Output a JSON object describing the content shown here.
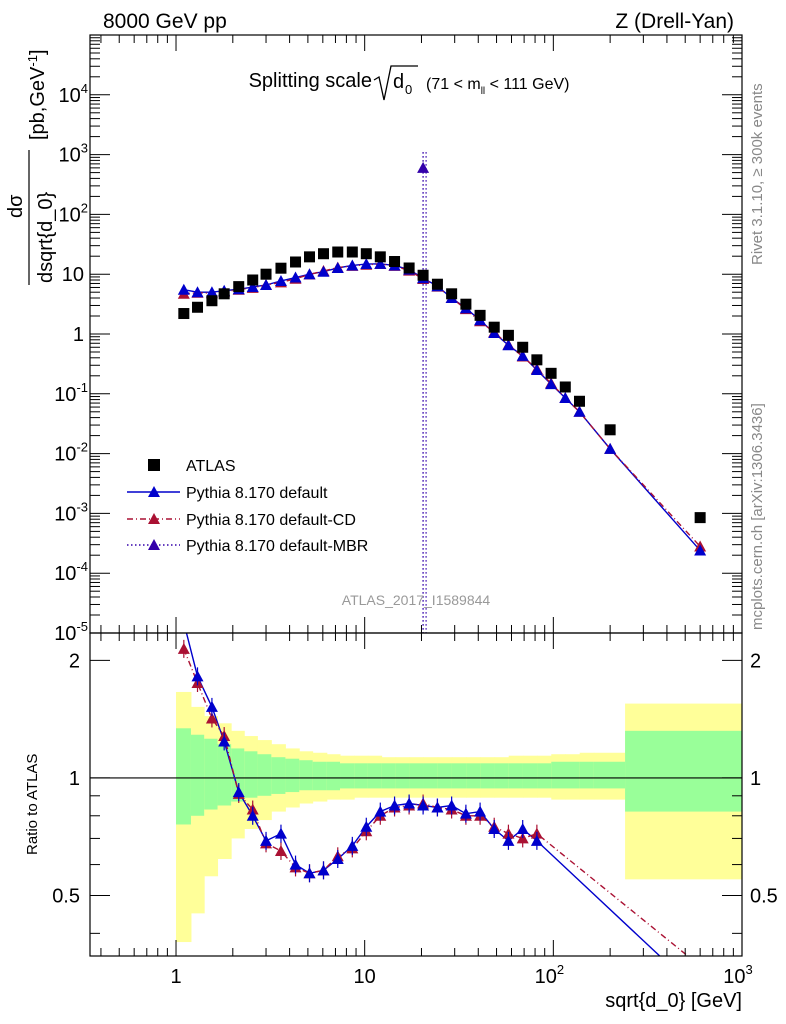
{
  "header": {
    "left": "8000 GeV pp",
    "right": "Z (Drell-Yan)",
    "side_rivet": "Rivet 3.1.10, ≥ 300k events",
    "side_mcplots": "mcplots.cern.ch [arXiv:1306.3436]"
  },
  "chart_data": [
    {
      "type": "scatter",
      "title": "Splitting scale",
      "title_sqrt": "d",
      "title_sub": "0",
      "title_range_pre": "(71 < m",
      "title_range_sub": "ll",
      "title_range_post": " < 111 GeV)",
      "ylabel_num": "dσ",
      "ylabel_den": "dsqrt{d_0}",
      "ylabel_unit": "[pb,GeV",
      "ylabel_unit_sup": "-1",
      "ylabel_unit_close": "]",
      "watermark": "ATLAS_2017_I1589844",
      "xscale": "log",
      "yscale": "log",
      "xlim": [
        0.35,
        1000
      ],
      "ylim": [
        1e-05,
        100000.0
      ],
      "y_tick_labels": [
        "10^-5",
        "10^-4",
        "10^-3",
        "10^-2",
        "10^-1",
        "1",
        "10",
        "10^2",
        "10^3",
        "10^4"
      ],
      "x": [
        1.1,
        1.3,
        1.55,
        1.8,
        2.15,
        2.55,
        3.0,
        3.6,
        4.3,
        5.1,
        6.05,
        7.2,
        8.6,
        10.2,
        12.1,
        14.4,
        17.2,
        20.4,
        24.3,
        28.9,
        34.4,
        40.9,
        48.6,
        57.8,
        68.8,
        81.8,
        97.3,
        115.7,
        137.6,
        200,
        600
      ],
      "series": [
        {
          "name": "ATLAS",
          "marker": "square",
          "color": "#000000",
          "values": [
            2.2,
            2.8,
            3.6,
            4.7,
            6.2,
            8.0,
            10.0,
            12.6,
            16.0,
            19.5,
            22.0,
            23.5,
            23.5,
            22.0,
            19.5,
            16.3,
            12.7,
            9.6,
            6.8,
            4.7,
            3.15,
            2.05,
            1.3,
            0.95,
            0.6,
            0.37,
            0.22,
            0.13,
            0.075,
            0.025,
            0.00085
          ]
        },
        {
          "name": "Pythia 8.170 default",
          "marker": "triangle",
          "line": "solid",
          "color": "#0000cc",
          "values": [
            5.5,
            5.0,
            5.0,
            5.3,
            5.6,
            6.1,
            6.6,
            7.7,
            8.8,
            10.0,
            11.0,
            12.7,
            14.0,
            14.8,
            14.9,
            14.0,
            11.9,
            8.6,
            6.3,
            4.0,
            2.7,
            1.7,
            1.04,
            0.65,
            0.43,
            0.25,
            0.145,
            0.085,
            0.05,
            0.012,
            0.00024
          ]
        },
        {
          "name": "Pythia 8.170 default-CD",
          "marker": "triangle",
          "line": "dashdot",
          "color": "#aa1133",
          "values": [
            4.7,
            4.9,
            4.8,
            5.1,
            5.5,
            5.9,
            6.6,
            7.3,
            8.4,
            9.9,
            11.3,
            12.9,
            13.8,
            14.4,
            14.8,
            13.8,
            11.5,
            8.3,
            6.2,
            4.0,
            2.6,
            1.63,
            1.07,
            0.66,
            0.42,
            0.26,
            0.15,
            0.085,
            0.05,
            0.012,
            0.00028
          ]
        },
        {
          "name": "Pythia 8.170 default-MBR",
          "marker": "triangle",
          "line": "dotted",
          "color": "#3300aa",
          "point_x": 20.4,
          "point_y": 600,
          "spike_from": 1e-05,
          "spike_to": 1100
        }
      ],
      "legend_position": "lower-left"
    },
    {
      "type": "line",
      "ylabel": "Ratio to ATLAS",
      "xlabel": "sqrt{d_0} [GeV]",
      "xscale": "log",
      "xlim": [
        0.35,
        1000
      ],
      "ylim": [
        0.35,
        2.35
      ],
      "x_tick_labels": [
        "1",
        "10",
        "10^2",
        "10^3"
      ],
      "y_tick_labels": [
        "0.5",
        "1",
        "2"
      ],
      "reference_line": 1,
      "band_edges": [
        1.0,
        1.2,
        1.41,
        1.66,
        1.96,
        2.3,
        2.7,
        3.2,
        3.8,
        4.5,
        5.3,
        6.3,
        7.4,
        8.8,
        10.4,
        12.3,
        14.6,
        17.3,
        20.5,
        24.4,
        29.0,
        34.5,
        41.0,
        48.8,
        58.0,
        69.0,
        82.0,
        97.5,
        116,
        138,
        164,
        240,
        1000
      ],
      "band_outer": [
        [
          0.38,
          1.66
        ],
        [
          0.45,
          1.52
        ],
        [
          0.56,
          1.44
        ],
        [
          0.62,
          1.38
        ],
        [
          0.7,
          1.32
        ],
        [
          0.74,
          1.28
        ],
        [
          0.78,
          1.25
        ],
        [
          0.82,
          1.22
        ],
        [
          0.84,
          1.19
        ],
        [
          0.86,
          1.17
        ],
        [
          0.87,
          1.16
        ],
        [
          0.88,
          1.15
        ],
        [
          0.88,
          1.14
        ],
        [
          0.89,
          1.14
        ],
        [
          0.89,
          1.14
        ],
        [
          0.89,
          1.13
        ],
        [
          0.89,
          1.13
        ],
        [
          0.89,
          1.13
        ],
        [
          0.89,
          1.13
        ],
        [
          0.89,
          1.13
        ],
        [
          0.89,
          1.13
        ],
        [
          0.89,
          1.13
        ],
        [
          0.89,
          1.13
        ],
        [
          0.89,
          1.13
        ],
        [
          0.89,
          1.14
        ],
        [
          0.89,
          1.14
        ],
        [
          0.89,
          1.14
        ],
        [
          0.88,
          1.15
        ],
        [
          0.88,
          1.15
        ],
        [
          0.88,
          1.16
        ],
        [
          0.88,
          1.16
        ],
        [
          0.55,
          1.55
        ]
      ],
      "band_inner": [
        [
          0.76,
          1.34
        ],
        [
          0.8,
          1.29
        ],
        [
          0.83,
          1.26
        ],
        [
          0.85,
          1.22
        ],
        [
          0.87,
          1.19
        ],
        [
          0.89,
          1.17
        ],
        [
          0.9,
          1.15
        ],
        [
          0.91,
          1.13
        ],
        [
          0.92,
          1.12
        ],
        [
          0.93,
          1.11
        ],
        [
          0.93,
          1.1
        ],
        [
          0.93,
          1.1
        ],
        [
          0.94,
          1.09
        ],
        [
          0.94,
          1.09
        ],
        [
          0.94,
          1.09
        ],
        [
          0.94,
          1.09
        ],
        [
          0.94,
          1.09
        ],
        [
          0.94,
          1.09
        ],
        [
          0.94,
          1.09
        ],
        [
          0.94,
          1.09
        ],
        [
          0.94,
          1.09
        ],
        [
          0.94,
          1.09
        ],
        [
          0.94,
          1.09
        ],
        [
          0.94,
          1.09
        ],
        [
          0.94,
          1.09
        ],
        [
          0.94,
          1.09
        ],
        [
          0.94,
          1.09
        ],
        [
          0.94,
          1.1
        ],
        [
          0.94,
          1.1
        ],
        [
          0.94,
          1.1
        ],
        [
          0.94,
          1.1
        ],
        [
          0.82,
          1.32
        ]
      ],
      "series": [
        {
          "name": "Pythia 8.170 default",
          "color": "#0000cc",
          "line": "solid",
          "x": [
            1.1,
            1.3,
            1.55,
            1.8,
            2.15,
            2.55,
            3.0,
            3.6,
            4.3,
            5.1,
            6.05,
            7.2,
            8.6,
            10.2,
            12.1,
            14.4,
            17.2,
            20.4,
            24.3,
            28.9,
            34.4,
            40.9,
            48.6,
            57.8,
            68.8,
            81.8
          ],
          "values": [
            2.5,
            1.82,
            1.52,
            1.24,
            0.92,
            0.8,
            0.69,
            0.72,
            0.6,
            0.57,
            0.58,
            0.62,
            0.67,
            0.75,
            0.82,
            0.85,
            0.86,
            0.85,
            0.84,
            0.85,
            0.81,
            0.82,
            0.74,
            0.69,
            0.74,
            0.69
          ],
          "line_to": [
            600,
            0.28
          ]
        },
        {
          "name": "Pythia 8.170 default-CD",
          "color": "#aa1133",
          "line": "dashdot",
          "x": [
            1.1,
            1.3,
            1.55,
            1.8,
            2.15,
            2.55,
            3.0,
            3.6,
            4.3,
            5.1,
            6.05,
            7.2,
            8.6,
            10.2,
            12.1,
            14.4,
            17.2,
            20.4,
            24.3,
            28.9,
            34.4,
            40.9,
            48.6,
            57.8,
            68.8,
            81.8
          ],
          "values": [
            2.14,
            1.75,
            1.42,
            1.28,
            0.91,
            0.83,
            0.68,
            0.65,
            0.59,
            0.57,
            0.58,
            0.63,
            0.66,
            0.73,
            0.8,
            0.84,
            0.85,
            0.86,
            0.84,
            0.83,
            0.8,
            0.8,
            0.75,
            0.72,
            0.7,
            0.72
          ],
          "line_to": [
            600,
            0.33
          ]
        }
      ]
    }
  ]
}
